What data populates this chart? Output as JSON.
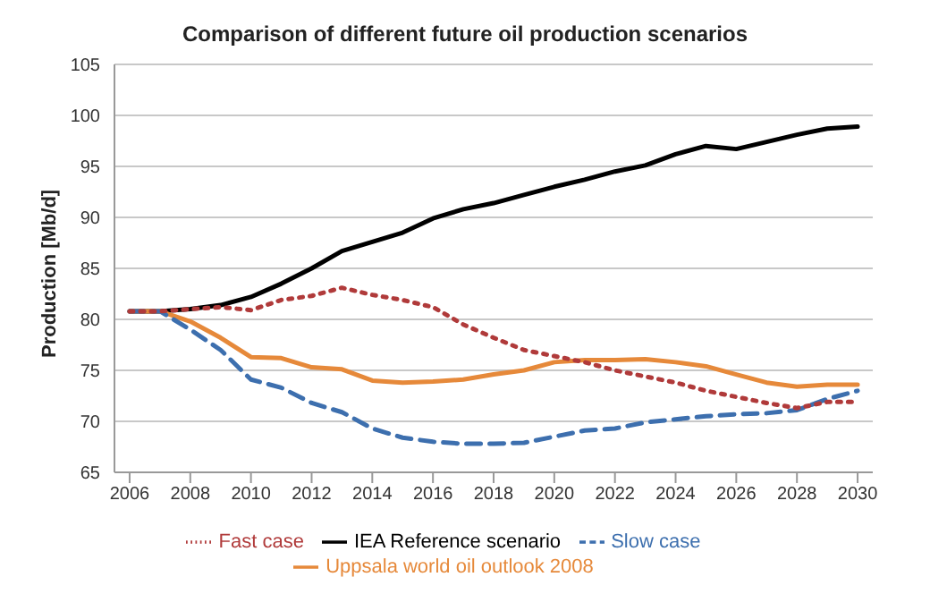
{
  "chart_data": {
    "type": "line",
    "title": "Comparison of different future oil production scenarios",
    "ylabel": "Production [Mb/d]",
    "x": [
      2006,
      2007,
      2008,
      2009,
      2010,
      2011,
      2012,
      2013,
      2014,
      2015,
      2016,
      2017,
      2018,
      2019,
      2020,
      2021,
      2022,
      2023,
      2024,
      2025,
      2026,
      2027,
      2028,
      2029,
      2030
    ],
    "xlim": [
      2005.5,
      2030.5
    ],
    "xticks": [
      2006,
      2008,
      2010,
      2012,
      2014,
      2016,
      2018,
      2020,
      2022,
      2024,
      2026,
      2028,
      2030
    ],
    "ylim": [
      65,
      105
    ],
    "yticks": [
      65,
      70,
      75,
      80,
      85,
      90,
      95,
      100,
      105
    ],
    "grid": "y",
    "legend": "bottom",
    "marker": "none",
    "series": [
      {
        "name": "IEA Reference scenario",
        "color": "#000000",
        "line_style": "solid",
        "values": [
          80.8,
          80.8,
          81.0,
          81.4,
          82.2,
          83.5,
          85.0,
          86.7,
          87.6,
          88.5,
          89.9,
          90.8,
          91.4,
          92.2,
          93.0,
          93.7,
          94.5,
          95.1,
          96.2,
          97.0,
          96.7,
          97.4,
          98.1,
          98.7,
          98.9
        ]
      },
      {
        "name": "Uppsala world oil outlook 2008",
        "color": "#e6893a",
        "line_style": "solid",
        "values": [
          80.8,
          80.8,
          79.8,
          78.2,
          76.3,
          76.2,
          75.3,
          75.1,
          74.0,
          73.8,
          73.9,
          74.1,
          74.6,
          75.0,
          75.8,
          76.0,
          76.0,
          76.1,
          75.8,
          75.4,
          74.6,
          73.8,
          73.4,
          73.6,
          73.6
        ]
      },
      {
        "name": "Slow case",
        "color": "#3d6fae",
        "line_style": "dashed",
        "values": [
          80.8,
          80.8,
          79.0,
          77.0,
          74.1,
          73.3,
          71.8,
          70.9,
          69.3,
          68.4,
          68.0,
          67.8,
          67.8,
          67.9,
          68.5,
          69.1,
          69.3,
          69.9,
          70.2,
          70.5,
          70.7,
          70.8,
          71.1,
          72.2,
          73.0
        ]
      },
      {
        "name": "Fast case",
        "color": "#b03a3a",
        "line_style": "dotted",
        "values": [
          80.8,
          80.8,
          81.0,
          81.2,
          80.9,
          81.9,
          82.3,
          83.1,
          82.4,
          81.9,
          81.2,
          79.5,
          78.2,
          77.0,
          76.4,
          75.8,
          75.0,
          74.4,
          73.8,
          73.0,
          72.4,
          71.8,
          71.3,
          71.9,
          71.9
        ]
      }
    ]
  }
}
